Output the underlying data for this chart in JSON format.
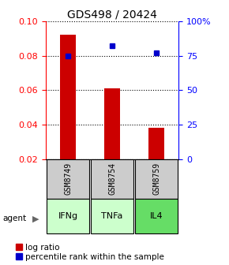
{
  "title": "GDS498 / 20424",
  "samples": [
    "GSM8749",
    "GSM8754",
    "GSM8759"
  ],
  "agents": [
    "IFNg",
    "TNFa",
    "IL4"
  ],
  "log_ratios": [
    0.092,
    0.061,
    0.038
  ],
  "percentile_ranks_pct": [
    75,
    82,
    77
  ],
  "ylim_left": [
    0.02,
    0.1
  ],
  "ylim_right": [
    0,
    100
  ],
  "yticks_left": [
    0.02,
    0.04,
    0.06,
    0.08,
    0.1
  ],
  "yticks_right": [
    0,
    25,
    50,
    75,
    100
  ],
  "ytick_labels_right": [
    "0",
    "25",
    "50",
    "75",
    "100%"
  ],
  "bar_color": "#cc0000",
  "point_color": "#0000cc",
  "sample_box_color": "#cccccc",
  "agent_box_colors": [
    "#ccffcc",
    "#ccffcc",
    "#66dd66"
  ],
  "title_fontsize": 10,
  "tick_fontsize": 8,
  "legend_fontsize": 7.5,
  "bar_width": 0.35
}
